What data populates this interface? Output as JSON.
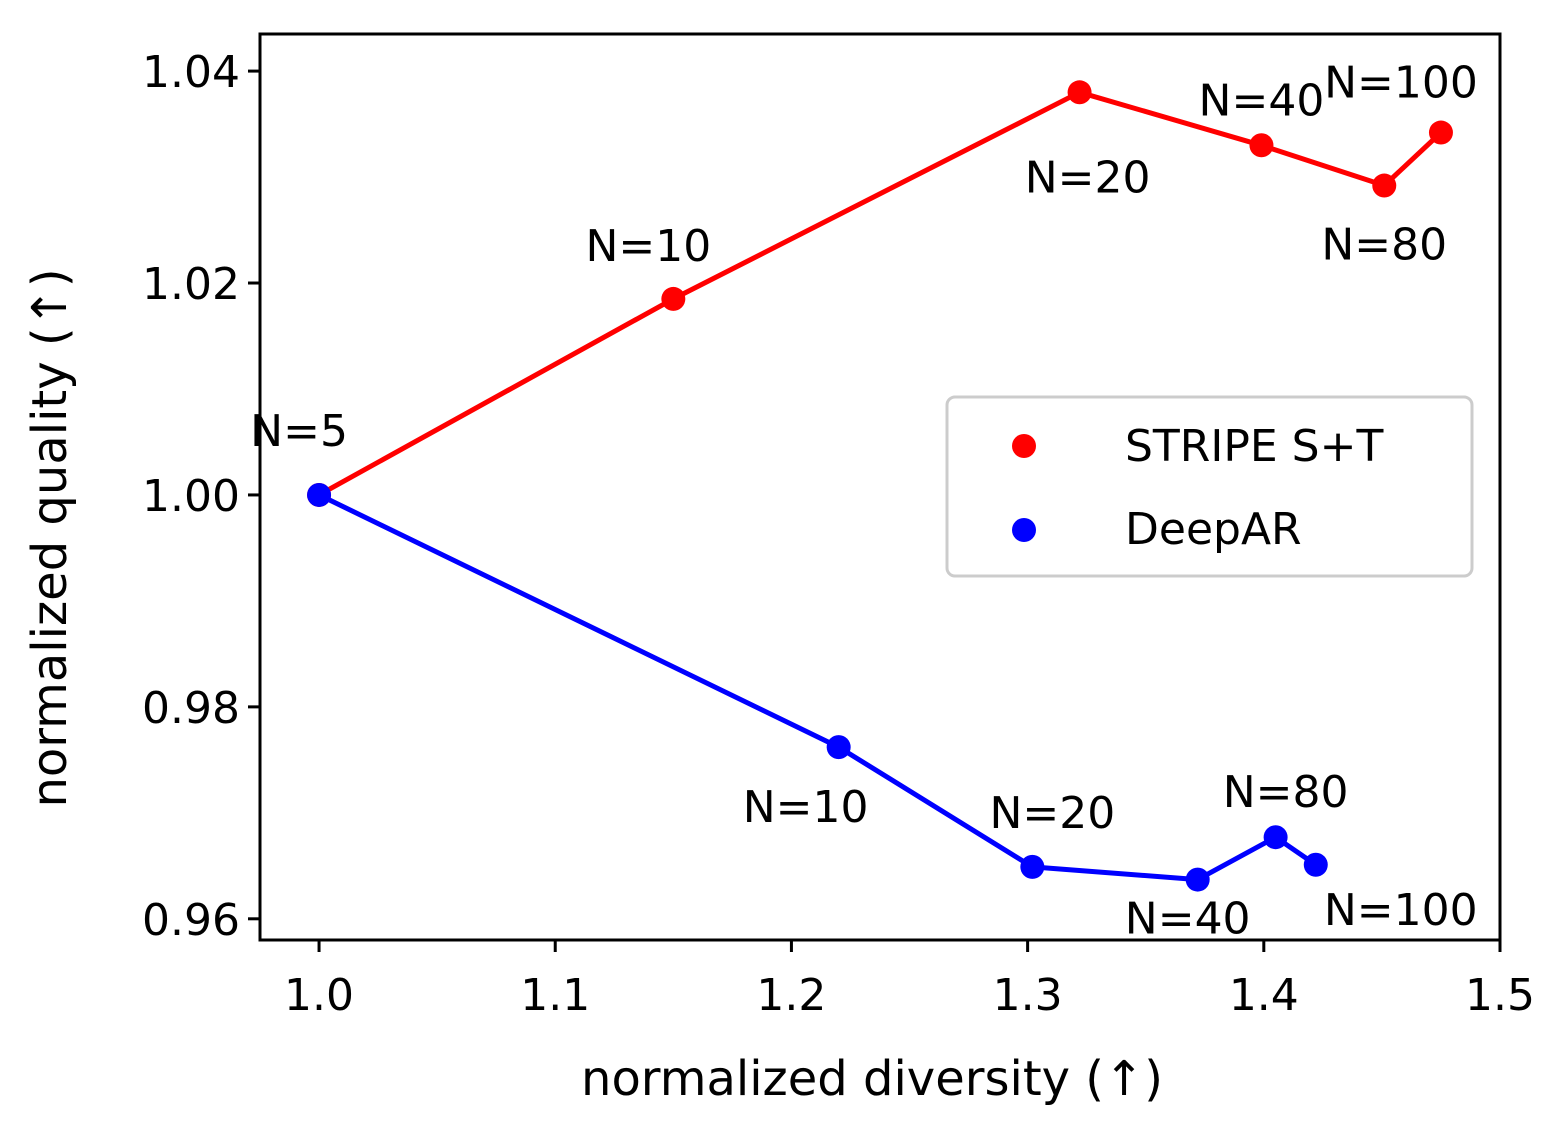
{
  "chart_data": {
    "type": "line",
    "title": "",
    "xlabel": "normalized diversity (↑)",
    "ylabel": "normalized quality (↑)",
    "xlim": [
      0.975,
      1.5
    ],
    "ylim": [
      0.958,
      1.0435
    ],
    "xticks": [
      1.0,
      1.1,
      1.2,
      1.3,
      1.4,
      1.5
    ],
    "xtick_labels": [
      "1.0",
      "1.1",
      "1.2",
      "1.3",
      "1.4",
      "1.5"
    ],
    "yticks": [
      0.96,
      0.98,
      1.0,
      1.02,
      1.04
    ],
    "ytick_labels": [
      "0.96",
      "0.98",
      "1.00",
      "1.02",
      "1.04"
    ],
    "grid": false,
    "legend_position": "center-right",
    "series": [
      {
        "name": "STRIPE S+T",
        "color": "#ff0000",
        "x": [
          1.0,
          1.15,
          1.322,
          1.399,
          1.451,
          1.475
        ],
        "y": [
          1.0,
          1.0185,
          1.038,
          1.033,
          1.0292,
          1.0342
        ],
        "labels": [
          "",
          "N=10",
          "N=20",
          "N=40",
          "N=80",
          "N=100"
        ]
      },
      {
        "name": "DeepAR",
        "color": "#0000ff",
        "x": [
          1.0,
          1.22,
          1.302,
          1.372,
          1.405,
          1.422
        ],
        "y": [
          1.0,
          0.9762,
          0.9649,
          0.9637,
          0.9677,
          0.9651
        ],
        "labels": [
          "N=5",
          "N=10",
          "N=20",
          "N=40",
          "N=80",
          "N=100"
        ]
      }
    ]
  }
}
